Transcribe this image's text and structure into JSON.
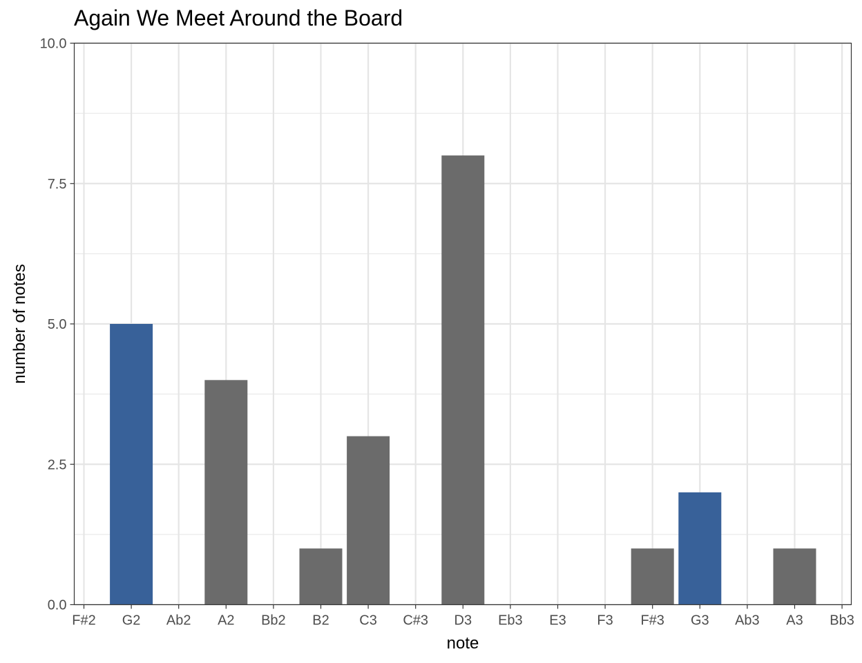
{
  "chart_data": {
    "type": "bar",
    "title": "Again We Meet Around the Board",
    "xlabel": "note",
    "ylabel": "number of notes",
    "ylim": [
      0,
      10
    ],
    "yticks": [
      "0.0",
      "2.5",
      "5.0",
      "7.5",
      "10.0"
    ],
    "categories": [
      "F#2",
      "G2",
      "Ab2",
      "A2",
      "Bb2",
      "B2",
      "C3",
      "C#3",
      "D3",
      "Eb3",
      "E3",
      "F3",
      "F#3",
      "G3",
      "Ab3",
      "A3",
      "Bb3"
    ],
    "values": [
      0,
      5,
      0,
      4,
      0,
      1,
      3,
      0,
      8,
      0,
      0,
      0,
      1,
      2,
      0,
      1,
      0
    ],
    "highlighted": [
      "G2",
      "G3"
    ],
    "grid": true,
    "legend": "none",
    "colors": {
      "bar": "#6b6b6b",
      "highlight": "#386199",
      "grid": "#e5e5e5",
      "panel_border": "#333333"
    }
  }
}
